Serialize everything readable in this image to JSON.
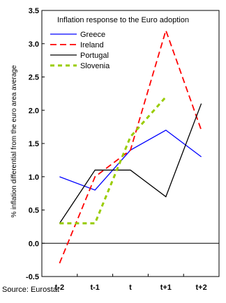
{
  "chart_data": {
    "type": "line",
    "title": "Inflation response to the Euro adoption",
    "ylabel": "% inflation differential from the euro area average",
    "xlabel": "",
    "categories": [
      "t-2",
      "t-1",
      "t",
      "t+1",
      "t+2"
    ],
    "ylim": [
      -0.5,
      3.5
    ],
    "yticks": [
      "-0.5",
      "0.0",
      "0.5",
      "1.0",
      "1.5",
      "2.0",
      "2.5",
      "3.0",
      "3.5"
    ],
    "grid": false,
    "legend_position": "top-left",
    "series": [
      {
        "name": "Greece",
        "color": "#0000ff",
        "style": "solid",
        "values": [
          1.0,
          0.8,
          1.4,
          1.7,
          1.3
        ]
      },
      {
        "name": "Ireland",
        "color": "#ff0000",
        "style": "dashed",
        "values": [
          -0.3,
          1.0,
          1.4,
          3.2,
          1.7
        ]
      },
      {
        "name": "Portugal",
        "color": "#000000",
        "style": "solid",
        "values": [
          0.3,
          1.1,
          1.1,
          0.7,
          2.1
        ]
      },
      {
        "name": "Slovenia",
        "color": "#99cc00",
        "style": "dotted",
        "values": [
          0.3,
          0.3,
          1.6,
          2.2,
          null
        ]
      }
    ]
  },
  "source": "Source: Eurostat"
}
